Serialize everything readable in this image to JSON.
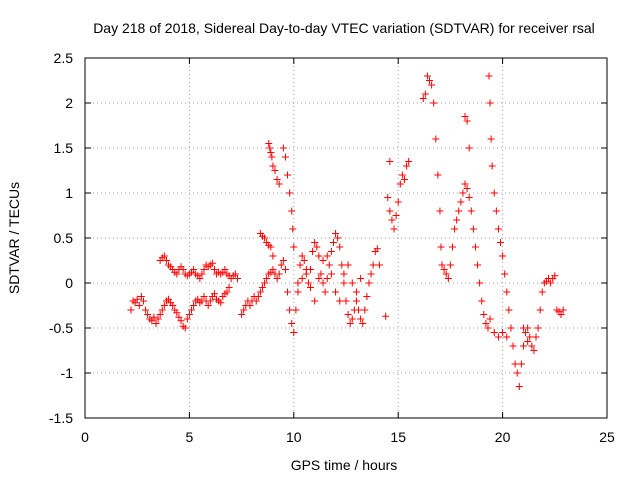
{
  "chart_data": {
    "type": "scatter",
    "title": "Day 218 of 2018, Sidereal Day-to-day VTEC variation (SDTVAR) for receiver rsal",
    "xlabel": "GPS time / hours",
    "ylabel": "SDTVAR / TECUs",
    "xlim": [
      0,
      25
    ],
    "ylim": [
      -1.5,
      2.5
    ],
    "xticks": [
      0,
      5,
      10,
      15,
      20,
      25
    ],
    "yticks": [
      -1.5,
      -1,
      -0.5,
      0,
      0.5,
      1,
      1.5,
      2,
      2.5
    ],
    "xtick_labels": [
      "0",
      "5",
      "10",
      "15",
      "20",
      "25"
    ],
    "ytick_labels": [
      "-1.5",
      "-1",
      "-0.5",
      "0",
      "0.5",
      "1",
      "1.5",
      "2",
      "2.5"
    ],
    "grid": true,
    "marker": "+",
    "color": "#ff0000",
    "series": [
      {
        "name": "rsal",
        "points": [
          [
            2.2,
            -0.3
          ],
          [
            2.3,
            -0.2
          ],
          [
            2.4,
            -0.22
          ],
          [
            2.5,
            -0.18
          ],
          [
            2.6,
            -0.25
          ],
          [
            2.7,
            -0.15
          ],
          [
            2.8,
            -0.2
          ],
          [
            2.9,
            -0.3
          ],
          [
            3.0,
            -0.35
          ],
          [
            3.1,
            -0.4
          ],
          [
            3.2,
            -0.42
          ],
          [
            3.3,
            -0.38
          ],
          [
            3.4,
            -0.45
          ],
          [
            3.5,
            -0.4
          ],
          [
            3.6,
            -0.35
          ],
          [
            3.7,
            -0.3
          ],
          [
            3.8,
            -0.25
          ],
          [
            3.9,
            -0.2
          ],
          [
            4.0,
            -0.18
          ],
          [
            4.1,
            -0.22
          ],
          [
            4.2,
            -0.25
          ],
          [
            4.3,
            -0.3
          ],
          [
            4.4,
            -0.33
          ],
          [
            4.5,
            -0.38
          ],
          [
            4.6,
            -0.42
          ],
          [
            4.7,
            -0.48
          ],
          [
            4.8,
            -0.5
          ],
          [
            4.9,
            -0.4
          ],
          [
            5.0,
            -0.35
          ],
          [
            5.1,
            -0.3
          ],
          [
            5.2,
            -0.25
          ],
          [
            5.3,
            -0.2
          ],
          [
            5.4,
            -0.18
          ],
          [
            5.5,
            -0.22
          ],
          [
            5.6,
            -0.2
          ],
          [
            5.7,
            -0.15
          ],
          [
            5.8,
            -0.2
          ],
          [
            5.9,
            -0.25
          ],
          [
            6.0,
            -0.2
          ],
          [
            6.1,
            -0.15
          ],
          [
            6.2,
            -0.12
          ],
          [
            6.3,
            -0.18
          ],
          [
            6.4,
            -0.2
          ],
          [
            6.5,
            -0.22
          ],
          [
            6.6,
            -0.15
          ],
          [
            6.7,
            -0.12
          ],
          [
            6.8,
            -0.1
          ],
          [
            6.9,
            -0.05
          ],
          [
            3.6,
            0.25
          ],
          [
            3.7,
            0.28
          ],
          [
            3.8,
            0.3
          ],
          [
            3.9,
            0.25
          ],
          [
            4.0,
            0.2
          ],
          [
            4.1,
            0.18
          ],
          [
            4.2,
            0.15
          ],
          [
            4.3,
            0.12
          ],
          [
            4.4,
            0.1
          ],
          [
            4.5,
            0.15
          ],
          [
            4.6,
            0.18
          ],
          [
            4.7,
            0.15
          ],
          [
            4.8,
            0.1
          ],
          [
            4.9,
            0.08
          ],
          [
            5.0,
            0.1
          ],
          [
            5.1,
            0.12
          ],
          [
            5.2,
            0.15
          ],
          [
            5.3,
            0.1
          ],
          [
            5.4,
            0.08
          ],
          [
            5.5,
            0.05
          ],
          [
            5.6,
            0.1
          ],
          [
            5.7,
            0.15
          ],
          [
            5.8,
            0.2
          ],
          [
            5.9,
            0.18
          ],
          [
            6.0,
            0.2
          ],
          [
            6.1,
            0.22
          ],
          [
            6.2,
            0.15
          ],
          [
            6.3,
            0.1
          ],
          [
            6.4,
            0.12
          ],
          [
            6.5,
            0.1
          ],
          [
            6.6,
            0.12
          ],
          [
            6.7,
            0.15
          ],
          [
            6.8,
            0.1
          ],
          [
            6.9,
            0.08
          ],
          [
            7.0,
            0.05
          ],
          [
            7.1,
            0.08
          ],
          [
            7.2,
            0.1
          ],
          [
            7.3,
            0.05
          ],
          [
            7.5,
            -0.35
          ],
          [
            7.6,
            -0.3
          ],
          [
            7.7,
            -0.25
          ],
          [
            7.8,
            -0.2
          ],
          [
            7.9,
            -0.25
          ],
          [
            8.0,
            -0.2
          ],
          [
            8.1,
            -0.15
          ],
          [
            8.2,
            -0.2
          ],
          [
            8.3,
            -0.15
          ],
          [
            8.4,
            -0.1
          ],
          [
            8.5,
            -0.05
          ],
          [
            8.6,
            0.0
          ],
          [
            8.7,
            0.05
          ],
          [
            8.8,
            0.1
          ],
          [
            8.9,
            0.12
          ],
          [
            9.0,
            0.15
          ],
          [
            9.1,
            0.1
          ],
          [
            9.2,
            0.05
          ],
          [
            9.3,
            0.1
          ],
          [
            9.4,
            0.2
          ],
          [
            9.5,
            0.25
          ],
          [
            8.4,
            0.55
          ],
          [
            8.5,
            0.52
          ],
          [
            8.6,
            0.5
          ],
          [
            8.7,
            0.45
          ],
          [
            8.8,
            0.42
          ],
          [
            8.9,
            0.4
          ],
          [
            9.0,
            0.3
          ],
          [
            8.8,
            1.55
          ],
          [
            8.85,
            1.5
          ],
          [
            8.9,
            1.45
          ],
          [
            8.95,
            1.4
          ],
          [
            9.0,
            1.3
          ],
          [
            9.1,
            1.25
          ],
          [
            9.2,
            1.15
          ],
          [
            9.3,
            1.1
          ],
          [
            9.5,
            1.5
          ],
          [
            9.6,
            1.4
          ],
          [
            9.7,
            1.2
          ],
          [
            9.8,
            1.0
          ],
          [
            9.9,
            0.8
          ],
          [
            9.95,
            0.6
          ],
          [
            10.0,
            0.4
          ],
          [
            9.6,
            0.15
          ],
          [
            9.7,
            -0.1
          ],
          [
            9.8,
            -0.3
          ],
          [
            9.9,
            -0.45
          ],
          [
            10.0,
            -0.55
          ],
          [
            10.1,
            -0.3
          ],
          [
            10.2,
            0.0
          ],
          [
            10.3,
            0.2
          ],
          [
            10.4,
            0.3
          ],
          [
            10.5,
            0.25
          ],
          [
            10.6,
            0.1
          ],
          [
            10.7,
            0.0
          ],
          [
            10.8,
            0.15
          ],
          [
            10.9,
            0.35
          ],
          [
            11.0,
            0.45
          ],
          [
            11.1,
            0.4
          ],
          [
            11.2,
            0.3
          ],
          [
            11.3,
            0.1
          ],
          [
            11.4,
            0.0
          ],
          [
            11.5,
            -0.1
          ],
          [
            11.6,
            0.05
          ],
          [
            11.7,
            0.2
          ],
          [
            11.8,
            0.35
          ],
          [
            11.9,
            0.45
          ],
          [
            12.0,
            0.55
          ],
          [
            12.1,
            0.5
          ],
          [
            12.2,
            0.4
          ],
          [
            12.3,
            0.2
          ],
          [
            12.4,
            0.0
          ],
          [
            12.5,
            -0.2
          ],
          [
            12.6,
            -0.35
          ],
          [
            12.7,
            -0.45
          ],
          [
            12.8,
            -0.4
          ],
          [
            12.9,
            -0.3
          ],
          [
            13.0,
            -0.2
          ],
          [
            13.1,
            -0.3
          ],
          [
            13.2,
            -0.4
          ],
          [
            13.3,
            -0.45
          ],
          [
            13.4,
            -0.3
          ],
          [
            13.5,
            -0.15
          ],
          [
            13.6,
            0.0
          ],
          [
            13.7,
            0.1
          ],
          [
            13.8,
            0.2
          ],
          [
            13.9,
            0.35
          ],
          [
            14.0,
            0.38
          ],
          [
            14.1,
            0.2
          ],
          [
            14.4,
            -0.37
          ],
          [
            10.2,
            -0.1
          ],
          [
            10.4,
            0.05
          ],
          [
            10.6,
            0.15
          ],
          [
            10.8,
            -0.05
          ],
          [
            11.0,
            -0.2
          ],
          [
            11.2,
            0.05
          ],
          [
            11.4,
            0.25
          ],
          [
            11.6,
            0.3
          ],
          [
            11.8,
            0.1
          ],
          [
            12.0,
            -0.1
          ],
          [
            12.2,
            -0.2
          ],
          [
            12.4,
            0.1
          ],
          [
            12.6,
            0.2
          ],
          [
            12.8,
            0.0
          ],
          [
            13.0,
            -0.1
          ],
          [
            13.2,
            0.05
          ],
          [
            14.5,
            0.95
          ],
          [
            14.6,
            0.8
          ],
          [
            14.7,
            0.7
          ],
          [
            14.8,
            0.6
          ],
          [
            14.9,
            0.75
          ],
          [
            15.0,
            0.9
          ],
          [
            15.1,
            1.1
          ],
          [
            15.2,
            1.2
          ],
          [
            15.3,
            1.15
          ],
          [
            15.4,
            1.3
          ],
          [
            15.5,
            1.35
          ],
          [
            14.6,
            1.35
          ],
          [
            16.4,
            2.3
          ],
          [
            16.5,
            2.25
          ],
          [
            16.6,
            2.2
          ],
          [
            16.7,
            2.0
          ],
          [
            16.8,
            1.6
          ],
          [
            16.9,
            1.2
          ],
          [
            17.0,
            0.8
          ],
          [
            17.05,
            0.4
          ],
          [
            17.1,
            0.2
          ],
          [
            17.2,
            0.15
          ],
          [
            17.3,
            0.1
          ],
          [
            17.4,
            0.05
          ],
          [
            17.5,
            0.2
          ],
          [
            17.6,
            0.4
          ],
          [
            17.7,
            0.6
          ],
          [
            17.8,
            0.7
          ],
          [
            16.3,
            2.1
          ],
          [
            16.2,
            2.05
          ],
          [
            17.9,
            0.8
          ],
          [
            18.0,
            0.9
          ],
          [
            18.1,
            1.0
          ],
          [
            18.2,
            1.1
          ],
          [
            18.3,
            1.05
          ],
          [
            18.4,
            0.95
          ],
          [
            18.5,
            0.8
          ],
          [
            18.6,
            0.6
          ],
          [
            18.7,
            0.4
          ],
          [
            18.8,
            0.2
          ],
          [
            18.9,
            0.0
          ],
          [
            19.0,
            -0.2
          ],
          [
            19.1,
            -0.35
          ],
          [
            19.2,
            -0.45
          ],
          [
            19.3,
            -0.5
          ],
          [
            19.4,
            -0.4
          ],
          [
            18.3,
            1.8
          ],
          [
            18.2,
            1.85
          ],
          [
            18.4,
            1.5
          ],
          [
            19.35,
            2.3
          ],
          [
            19.4,
            2.0
          ],
          [
            19.45,
            1.6
          ],
          [
            19.5,
            1.3
          ],
          [
            19.6,
            1.0
          ],
          [
            19.7,
            0.8
          ],
          [
            19.8,
            0.6
          ],
          [
            19.9,
            0.45
          ],
          [
            20.0,
            0.3
          ],
          [
            20.1,
            0.1
          ],
          [
            20.2,
            -0.1
          ],
          [
            20.3,
            -0.3
          ],
          [
            20.4,
            -0.5
          ],
          [
            20.5,
            -0.7
          ],
          [
            20.6,
            -0.9
          ],
          [
            20.7,
            -1.0
          ],
          [
            20.8,
            -1.15
          ],
          [
            20.9,
            -0.9
          ],
          [
            21.0,
            -0.7
          ],
          [
            21.1,
            -0.55
          ],
          [
            21.2,
            -0.5
          ],
          [
            21.3,
            -0.6
          ],
          [
            21.4,
            -0.7
          ],
          [
            21.5,
            -0.75
          ],
          [
            21.6,
            -0.6
          ],
          [
            21.7,
            -0.5
          ],
          [
            21.8,
            -0.3
          ],
          [
            21.9,
            -0.1
          ],
          [
            22.0,
            0.0
          ],
          [
            22.1,
            0.02
          ],
          [
            22.2,
            0.05
          ],
          [
            22.3,
            0.0
          ],
          [
            22.4,
            0.05
          ],
          [
            22.5,
            0.08
          ],
          [
            22.6,
            -0.3
          ],
          [
            22.7,
            -0.32
          ],
          [
            22.8,
            -0.35
          ],
          [
            22.9,
            -0.3
          ],
          [
            19.6,
            -0.55
          ],
          [
            19.8,
            -0.6
          ],
          [
            20.0,
            -0.55
          ],
          [
            20.2,
            -0.6
          ],
          [
            21.0,
            -0.5
          ],
          [
            21.2,
            -0.65
          ]
        ]
      }
    ]
  }
}
